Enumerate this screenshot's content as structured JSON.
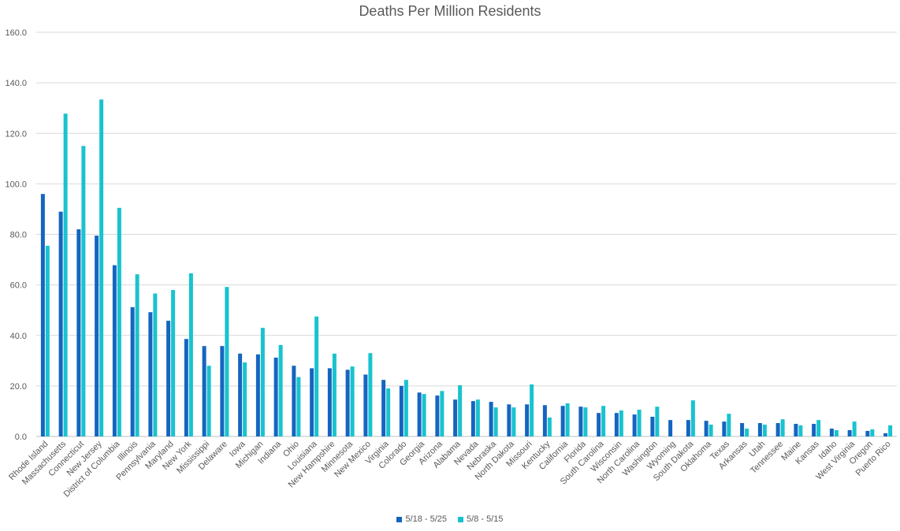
{
  "colors": {
    "series1": "#1565C0",
    "series2": "#18C3CF",
    "grid": "#D9D9D9",
    "axis": "#BFBFBF",
    "text": "#595959"
  },
  "chart_data": {
    "type": "bar",
    "title": "Deaths Per Million Residents",
    "xlabel": "",
    "ylabel": "",
    "ylim": [
      0,
      160
    ],
    "yticks": [
      "0.0",
      "20.0",
      "40.0",
      "60.0",
      "80.0",
      "100.0",
      "120.0",
      "140.0",
      "160.0"
    ],
    "grid": true,
    "legend_position": "bottom",
    "categories": [
      "Rhode Island",
      "Massachusetts",
      "Connecticut",
      "New Jersey",
      "District of Columbia",
      "Illinois",
      "Pennsylvania",
      "Maryland",
      "New York",
      "Mississippi",
      "Delaware",
      "Iowa",
      "Michigan",
      "Indiana",
      "Ohio",
      "Louisiana",
      "New Hampshire",
      "Minnesota",
      "New Mexico",
      "Virginia",
      "Colorado",
      "Georgia",
      "Arizona",
      "Alabama",
      "Nevada",
      "Nebraska",
      "North Dakota",
      "Missouri",
      "Kentucky",
      "California",
      "Florida",
      "South Carolina",
      "Wisconsin",
      "North Carolina",
      "Washington",
      "Wyoming",
      "South Dakota",
      "Oklahoma",
      "Texas",
      "Arkansas",
      "Utah",
      "Tennessee",
      "Maine",
      "Kansas",
      "Idaho",
      "West Virginia",
      "Oregon",
      "Puerto Rico"
    ],
    "series": [
      {
        "name": "5/18 - 5/25",
        "values": [
          96.0,
          89.0,
          82.0,
          79.5,
          67.8,
          51.2,
          49.2,
          45.8,
          38.6,
          35.8,
          35.8,
          32.8,
          32.5,
          31.2,
          28.0,
          27.0,
          27.0,
          26.4,
          24.5,
          22.4,
          20.0,
          17.4,
          16.2,
          14.6,
          14.0,
          13.7,
          12.7,
          12.7,
          12.4,
          12.1,
          11.8,
          9.3,
          9.3,
          8.7,
          7.8,
          6.5,
          6.5,
          6.2,
          5.9,
          5.3,
          5.3,
          5.3,
          5.0,
          5.0,
          3.1,
          2.5,
          2.2,
          1.3
        ]
      },
      {
        "name": "5/8 - 5/15",
        "values": [
          75.5,
          127.8,
          115.0,
          133.4,
          90.5,
          64.2,
          56.6,
          58.0,
          64.6,
          28.0,
          59.2,
          29.3,
          43.0,
          36.2,
          23.5,
          47.5,
          32.8,
          27.7,
          33.0,
          19.0,
          22.4,
          16.8,
          18.0,
          20.3,
          14.6,
          11.5,
          11.5,
          20.6,
          7.5,
          13.1,
          11.5,
          12.1,
          10.3,
          10.6,
          11.8,
          0,
          14.3,
          4.7,
          9.0,
          3.1,
          4.7,
          6.8,
          4.4,
          6.5,
          2.5,
          5.9,
          2.8,
          4.4
        ]
      }
    ]
  }
}
